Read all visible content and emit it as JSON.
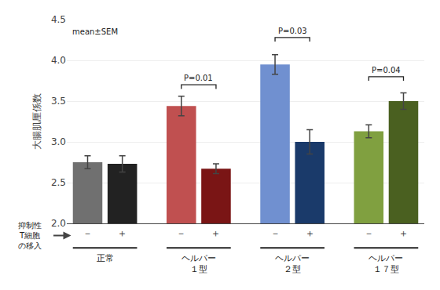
{
  "chart_data": {
    "type": "bar",
    "ylabel": "大腸肌厘係数",
    "annotations": [
      "mean±SEM"
    ],
    "categories": [
      "－",
      "＋",
      "－",
      "＋",
      "－",
      "＋",
      "－",
      "＋"
    ],
    "groups": [
      "正常",
      "ヘルパー\n１型",
      "ヘルパー\n２型",
      "ヘルパー\n１７型"
    ],
    "side_label": [
      "抑制性",
      "T細胞",
      "の移入"
    ],
    "values": [
      2.75,
      2.73,
      3.44,
      2.67,
      3.95,
      3.0,
      3.13,
      3.5
    ],
    "errors": [
      0.08,
      0.1,
      0.12,
      0.06,
      0.12,
      0.15,
      0.08,
      0.1
    ],
    "colors": [
      "#707070",
      "#222222",
      "#c05050",
      "#7a1515",
      "#7090d0",
      "#1a3a6a",
      "#80a040",
      "#4a6020"
    ],
    "significance": [
      {
        "from": 2,
        "to": 3,
        "y": 3.7,
        "label": "P=0.01"
      },
      {
        "from": 4,
        "to": 5,
        "y": 4.28,
        "label": "P=0.03"
      },
      {
        "from": 6,
        "to": 7,
        "y": 3.8,
        "label": "P=0.04"
      }
    ],
    "ylim": [
      2.0,
      4.5
    ],
    "yticks": [
      {
        "value": 2,
        "label": "2.0"
      },
      2.5,
      {
        "value": 3,
        "label": "3.0"
      },
      3.5,
      {
        "value": 4,
        "label": "4.0"
      },
      4.5
    ],
    "grid": true
  }
}
